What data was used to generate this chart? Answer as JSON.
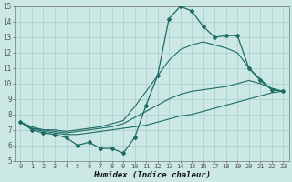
{
  "xlabel": "Humidex (Indice chaleur)",
  "xlim": [
    -0.5,
    23.5
  ],
  "ylim": [
    5,
    15
  ],
  "xticks": [
    0,
    1,
    2,
    3,
    4,
    5,
    6,
    7,
    8,
    9,
    10,
    11,
    12,
    13,
    14,
    15,
    16,
    17,
    18,
    19,
    20,
    21,
    22,
    23
  ],
  "yticks": [
    5,
    6,
    7,
    8,
    9,
    10,
    11,
    12,
    13,
    14,
    15
  ],
  "bg_color": "#cce8e5",
  "grid_color": "#a8ccca",
  "line_color": "#1e6b65",
  "series": [
    {
      "x": [
        0,
        1,
        2,
        3,
        4,
        5,
        6,
        7,
        8,
        9,
        10,
        11,
        12,
        13,
        14,
        15,
        16,
        17,
        18,
        19,
        20,
        21,
        22,
        23
      ],
      "y": [
        7.5,
        7.0,
        6.8,
        6.7,
        6.5,
        6.0,
        6.2,
        5.8,
        5.8,
        5.5,
        6.5,
        8.6,
        10.5,
        14.2,
        15.0,
        14.7,
        13.7,
        13.0,
        13.1,
        13.1,
        11.0,
        10.2,
        9.6,
        9.5
      ],
      "marker": "D",
      "markersize": 2.0,
      "linewidth": 0.9
    },
    {
      "x": [
        0,
        1,
        2,
        3,
        4,
        5,
        6,
        7,
        8,
        9,
        10,
        11,
        12,
        13,
        14,
        15,
        16,
        17,
        18,
        19,
        20,
        21,
        22,
        23
      ],
      "y": [
        7.5,
        7.2,
        7.0,
        7.0,
        6.9,
        7.0,
        7.1,
        7.2,
        7.4,
        7.6,
        8.5,
        9.5,
        10.5,
        11.5,
        12.2,
        12.5,
        12.7,
        12.5,
        12.3,
        12.0,
        11.0,
        10.3,
        9.6,
        9.5
      ],
      "marker": null,
      "linewidth": 0.8
    },
    {
      "x": [
        0,
        1,
        2,
        3,
        4,
        5,
        6,
        7,
        8,
        9,
        10,
        11,
        12,
        13,
        14,
        15,
        16,
        17,
        18,
        19,
        20,
        21,
        22,
        23
      ],
      "y": [
        7.5,
        7.1,
        7.0,
        6.9,
        6.8,
        6.9,
        7.0,
        7.1,
        7.2,
        7.4,
        7.8,
        8.2,
        8.6,
        9.0,
        9.3,
        9.5,
        9.6,
        9.7,
        9.8,
        10.0,
        10.2,
        10.0,
        9.7,
        9.5
      ],
      "marker": null,
      "linewidth": 0.8
    },
    {
      "x": [
        0,
        1,
        2,
        3,
        4,
        5,
        6,
        7,
        8,
        9,
        10,
        11,
        12,
        13,
        14,
        15,
        16,
        17,
        18,
        19,
        20,
        21,
        22,
        23
      ],
      "y": [
        7.5,
        7.1,
        6.9,
        6.8,
        6.7,
        6.7,
        6.8,
        6.9,
        7.0,
        7.1,
        7.2,
        7.3,
        7.5,
        7.7,
        7.9,
        8.0,
        8.2,
        8.4,
        8.6,
        8.8,
        9.0,
        9.2,
        9.4,
        9.5
      ],
      "marker": null,
      "linewidth": 0.8
    }
  ]
}
